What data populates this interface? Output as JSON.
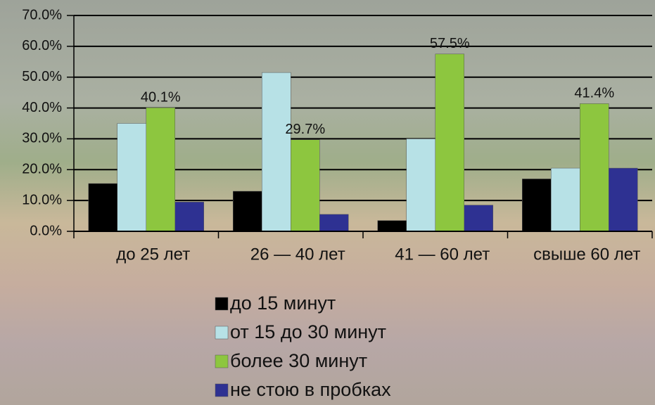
{
  "chart_data": {
    "type": "bar",
    "categories": [
      "до 25 лет",
      "26 — 40 лет",
      "41 — 60 лет",
      "свыше 60 лет"
    ],
    "series": [
      {
        "name": "до 15 минут",
        "color": "#000000",
        "values": [
          15.5,
          13,
          3.5,
          17
        ]
      },
      {
        "name": "от 15 до 30 минут",
        "color": "#b7e1e6",
        "values": [
          35,
          51.5,
          30,
          20.5
        ]
      },
      {
        "name": "более 30 минут",
        "color": "#8dc63f",
        "values": [
          40.1,
          29.7,
          57.5,
          41.4
        ],
        "value_labels": [
          "40.1%",
          "29.7%",
          "57.5%",
          "41.4%"
        ]
      },
      {
        "name": "не стою в пробках",
        "color": "#2e3192",
        "values": [
          9.5,
          5.5,
          8.5,
          20.5
        ]
      }
    ],
    "ylim": [
      0,
      70
    ],
    "yticks": [
      {
        "value": 0,
        "label": "0.0%"
      },
      {
        "value": 10,
        "label": "10.0%"
      },
      {
        "value": 20,
        "label": "20.0%"
      },
      {
        "value": 30,
        "label": "30.0%"
      },
      {
        "value": 40,
        "label": "40.0%"
      },
      {
        "value": 50,
        "label": "50.0%"
      },
      {
        "value": 60,
        "label": "60.0%"
      },
      {
        "value": 70,
        "label": "70.0%"
      }
    ],
    "grid": true
  }
}
